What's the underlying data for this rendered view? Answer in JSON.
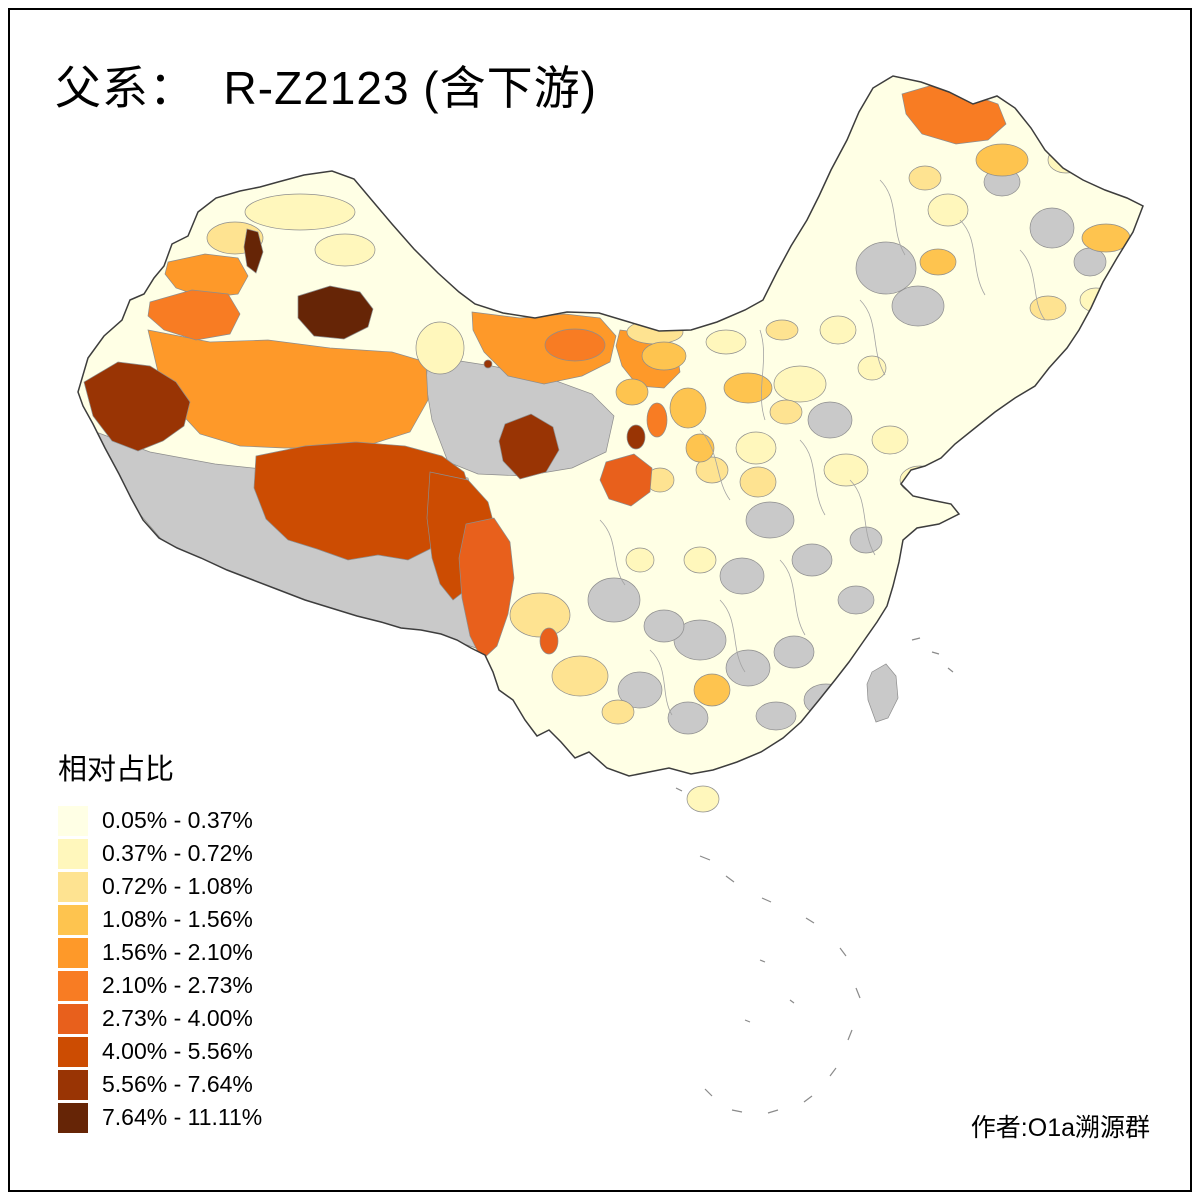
{
  "page": {
    "title": "父系：  R-Z2123 (含下游)",
    "author_credit": "作者:O1a溯源群"
  },
  "legend": {
    "title": "相对占比",
    "entries": [
      {
        "label": "0.05% - 0.37%",
        "color": "#FFFFE5"
      },
      {
        "label": "0.37% - 0.72%",
        "color": "#FFF7BC"
      },
      {
        "label": "0.72% - 1.08%",
        "color": "#FEE391"
      },
      {
        "label": "1.08% - 1.56%",
        "color": "#FEC44F"
      },
      {
        "label": "1.56% - 2.10%",
        "color": "#FE9929"
      },
      {
        "label": "2.10% - 2.73%",
        "color": "#F87C23"
      },
      {
        "label": "2.73% - 4.00%",
        "color": "#E8601C"
      },
      {
        "label": "4.00% - 5.56%",
        "color": "#CC4C02"
      },
      {
        "label": "5.56% - 7.64%",
        "color": "#993404"
      },
      {
        "label": "7.64% - 11.11%",
        "color": "#662506"
      }
    ],
    "no_data_color": "#C9C9C9",
    "outline_color": "#3D3D3D"
  },
  "map": {
    "region_name": "China prefecture choropleth",
    "type": "choropleth"
  }
}
